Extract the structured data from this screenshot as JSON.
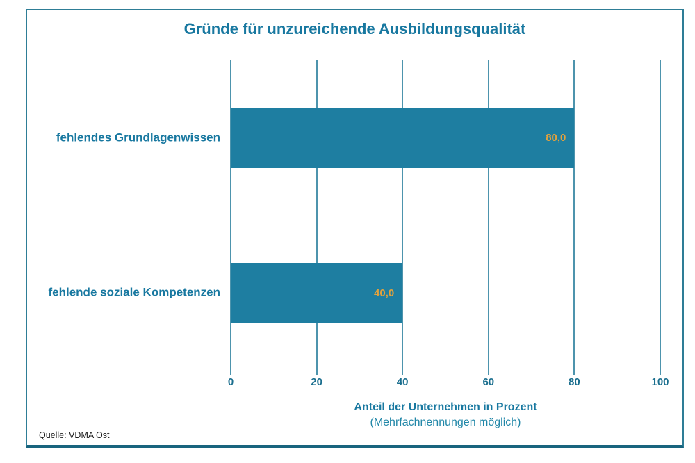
{
  "chart_data": {
    "type": "bar",
    "orientation": "horizontal",
    "title": "Gründe für unzureichende Ausbildungsqualität",
    "categories": [
      "fehlendes Grundlagenwissen",
      "fehlende soziale Kompetenzen"
    ],
    "values": [
      80.0,
      40.0
    ],
    "value_labels": [
      "80,0",
      "40,0"
    ],
    "xlabel": "Anteil der Unternehmen in Prozent",
    "xlabel_note": "(Mehrfachnennungen möglich)",
    "xlim": [
      0,
      100
    ],
    "xticks": [
      0,
      20,
      40,
      60,
      80,
      100
    ],
    "grid": "vertical",
    "legend": "none"
  },
  "source": "Quelle: VDMA Ost",
  "colors": {
    "bar": "#1E7EA1",
    "title_text": "#1878A0",
    "tick_text": "#1A6E8E",
    "value_label": "#E3A23C",
    "gridline": "#4D94AD",
    "note_text": "#2187A8",
    "frame_border": "#2E7D96",
    "frame_bottom": "#18647E",
    "source_text": "#1A1A1A"
  }
}
